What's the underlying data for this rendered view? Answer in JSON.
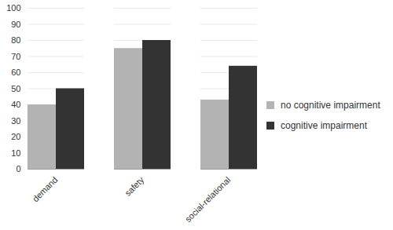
{
  "chart_data": {
    "type": "bar",
    "categories": [
      "demand",
      "safety",
      "social-relational"
    ],
    "series": [
      {
        "name": "no cognitive impairment",
        "color": "#b3b3b3",
        "values": [
          40,
          75,
          43
        ]
      },
      {
        "name": "cognitive impairment",
        "color": "#333333",
        "values": [
          50,
          80,
          64
        ]
      }
    ],
    "ylim": [
      0,
      100
    ],
    "yticks": [
      0,
      10,
      20,
      30,
      40,
      50,
      60,
      70,
      80,
      90,
      100
    ],
    "grid": true,
    "legend": "right"
  }
}
